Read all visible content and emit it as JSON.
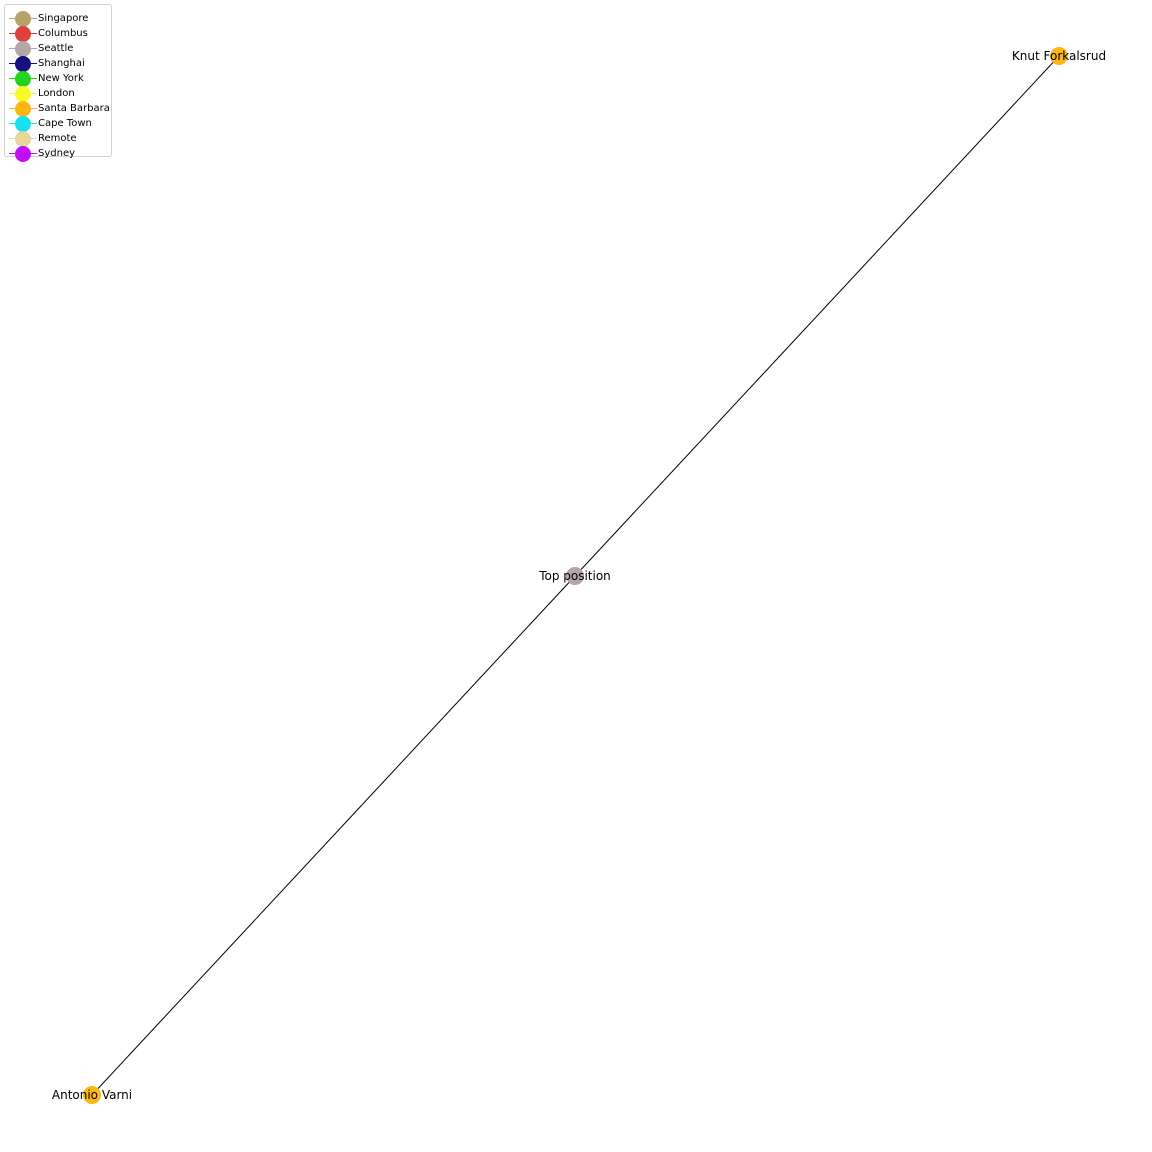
{
  "legend": {
    "items": [
      {
        "label": "Singapore",
        "color": "#b5a36b"
      },
      {
        "label": "Columbus",
        "color": "#e0403a"
      },
      {
        "label": "Seattle",
        "color": "#b3a6a6"
      },
      {
        "label": "Shanghai",
        "color": "#15117f"
      },
      {
        "label": "New York",
        "color": "#22d41e"
      },
      {
        "label": "London",
        "color": "#fafa2a"
      },
      {
        "label": "Santa Barbara",
        "color": "#fdb714"
      },
      {
        "label": "Cape Town",
        "color": "#16e1f0"
      },
      {
        "label": "Remote",
        "color": "#e6d69a"
      },
      {
        "label": "Sydney",
        "color": "#c30ef5"
      }
    ]
  },
  "graph": {
    "nodes": [
      {
        "id": "knut",
        "label": "Knut Forkalsrud",
        "location": "Santa Barbara",
        "color": "#fdb714"
      },
      {
        "id": "top",
        "label": "Top position",
        "location": "Seattle",
        "color": "#b3a6a6"
      },
      {
        "id": "antonio",
        "label": "Antonio Varni",
        "location": "Santa Barbara",
        "color": "#fdb714"
      }
    ],
    "edges": [
      {
        "source": "top",
        "target": "knut"
      },
      {
        "source": "top",
        "target": "antonio"
      }
    ]
  }
}
